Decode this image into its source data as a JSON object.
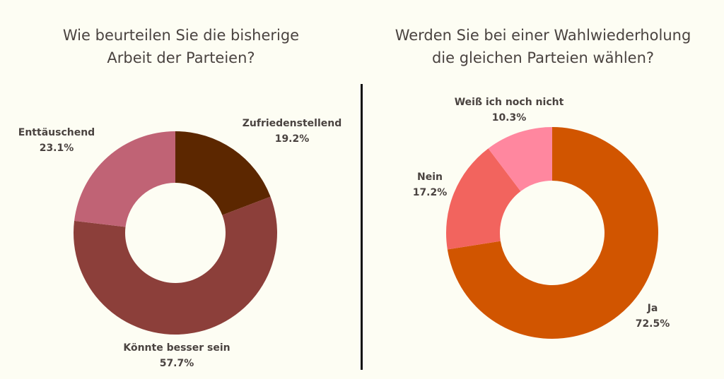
{
  "chart_data": [
    {
      "type": "donut",
      "title_line1": "Wie beurteilen Sie die bisherige",
      "title_line2": "Arbeit der Parteien?",
      "slices": [
        {
          "label": "Zufriedenstellend",
          "value": 19.2,
          "value_label": "19.2%",
          "color": "#5c2700"
        },
        {
          "label": "Könnte besser sein",
          "value": 57.7,
          "value_label": "57.7%",
          "color": "#8c3f3a"
        },
        {
          "label": "Enttäuschend",
          "value": 23.1,
          "value_label": "23.1%",
          "color": "#c06375"
        }
      ]
    },
    {
      "type": "donut",
      "title_line1": "Werden Sie bei einer Wahlwiederholung",
      "title_line2": "die gleichen Parteien wählen?",
      "slices": [
        {
          "label": "Ja",
          "value": 72.5,
          "value_label": "72.5%",
          "color": "#d15500"
        },
        {
          "label": "Nein",
          "value": 17.2,
          "value_label": "17.2%",
          "color": "#f2645e"
        },
        {
          "label": "Weiß ich noch nicht",
          "value": 10.3,
          "value_label": "10.3%",
          "color": "#ff879f"
        }
      ]
    }
  ]
}
